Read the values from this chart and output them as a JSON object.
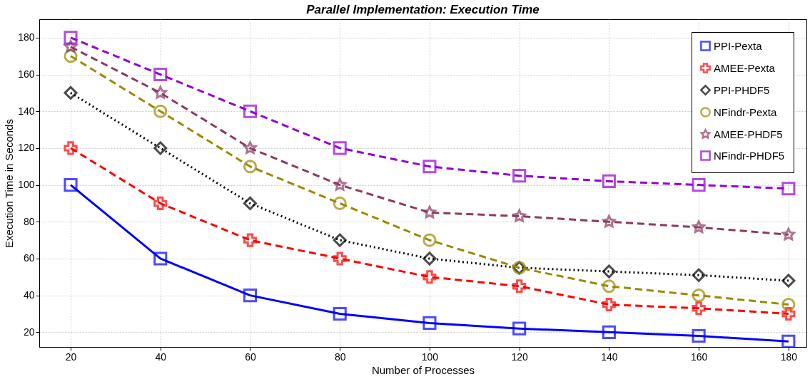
{
  "chart_data": {
    "type": "line",
    "title": "Parallel Implementation: Execution Time",
    "xlabel": "Number of Processes",
    "ylabel": "Execution Time in Seconds",
    "x": [
      20,
      40,
      60,
      80,
      100,
      120,
      140,
      160,
      180
    ],
    "series": [
      {
        "name": "PPI-Pexta",
        "color": "#0000ff",
        "marker": "square",
        "line_style": "solid",
        "values": [
          100,
          60,
          40,
          30,
          25,
          22,
          20,
          18,
          15
        ]
      },
      {
        "name": "AMEE-Pexta",
        "color": "#ff0000",
        "marker": "cross",
        "line_style": "dashed",
        "values": [
          120,
          90,
          70,
          60,
          50,
          45,
          35,
          33,
          30
        ]
      },
      {
        "name": "PPI-PHDF5",
        "color": "#000000",
        "marker": "diamond",
        "line_style": "dotted",
        "values": [
          150,
          120,
          90,
          70,
          60,
          55,
          53,
          51,
          48
        ]
      },
      {
        "name": "NFindr-Pexta",
        "color": "#9a8a00",
        "marker": "circle",
        "line_style": "dashed",
        "values": [
          170,
          140,
          110,
          90,
          70,
          55,
          45,
          40,
          35
        ]
      },
      {
        "name": "AMEE-PHDF5",
        "color": "#8b3a62",
        "marker": "star",
        "line_style": "dashed",
        "values": [
          175,
          150,
          120,
          100,
          85,
          83,
          80,
          77,
          73
        ]
      },
      {
        "name": "NFindr-PHDF5",
        "color": "#9400d3",
        "marker": "square",
        "line_style": "dashed",
        "values": [
          180,
          160,
          140,
          120,
          110,
          105,
          102,
          100,
          98
        ]
      }
    ],
    "xlim": [
      13,
      184
    ],
    "xticks": [
      20,
      40,
      60,
      80,
      100,
      120,
      140,
      160,
      180
    ],
    "ylim": [
      12,
      190
    ],
    "yticks": [
      20,
      40,
      60,
      80,
      100,
      120,
      140,
      160,
      180
    ],
    "grid": true,
    "legend": "top right"
  }
}
